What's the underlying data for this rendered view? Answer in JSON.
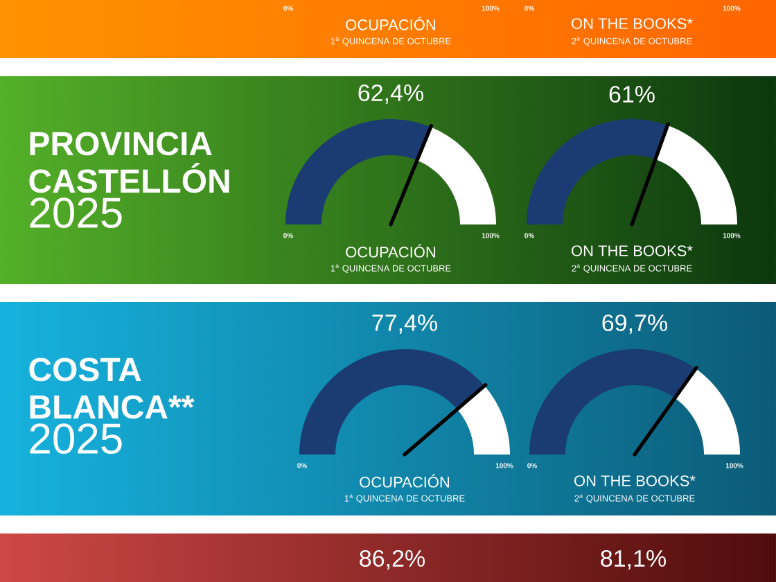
{
  "chart_data": [
    {
      "type": "other",
      "title": "OCUPACIÓN",
      "subtitle": "1$^{a}$ QUINCENA DE OCTUBRE",
      "annotations": [
        "0%",
        "100%"
      ]
    },
    {
      "type": "other",
      "title": "ON THE BOOKS*",
      "subtitle": "2$^{a}$ QUINCENA DE OCTUBRE",
      "annotations": [
        "0%",
        "100%"
      ]
    },
    {
      "type": "other",
      "title": "PROVINCIA CASTELLÓN",
      "subtitle": "2025"
    },
    {
      "type": "donut",
      "categories": [
        null,
        null
      ],
      "values": [
        62.4,
        37.6
      ],
      "colors": [
        "#1b3c73",
        "#ffffff"
      ],
      "value_labels": [
        "62,4%",
        null
      ],
      "title": "OCUPACIÓN",
      "subtitle": "1$^{a}$ QUINCENA DE OCTUBRE",
      "annotations": [
        "0%",
        "100%"
      ]
    },
    {
      "type": "donut",
      "categories": [
        null,
        null
      ],
      "values": [
        61,
        39
      ],
      "colors": [
        "#1b3c73",
        "#ffffff"
      ],
      "value_labels": [
        "61%",
        null
      ],
      "title": "ON THE BOOKS*",
      "subtitle": "2$^{a}$ QUINCENA DE OCTUBRE",
      "annotations": [
        "0%",
        "100%"
      ]
    },
    {
      "type": "other",
      "title": "COSTA BLANCA**",
      "subtitle": "2025"
    },
    {
      "type": "donut",
      "categories": [
        null,
        null
      ],
      "values": [
        77.4,
        22.6
      ],
      "colors": [
        "#1b3c73",
        "#ffffff"
      ],
      "value_labels": [
        "77,4%",
        null
      ],
      "title": "OCUPACIÓN",
      "subtitle": "1$^{a}$ QUINCENA DE OCTUBRE",
      "annotations": [
        "0%",
        "100%"
      ]
    },
    {
      "type": "donut",
      "categories": [
        null,
        null
      ],
      "values": [
        69.7,
        30.3
      ],
      "colors": [
        "#1b3c73",
        "#ffffff"
      ],
      "value_labels": [
        "69,7%",
        null
      ],
      "title": "ON THE BOOKS*",
      "subtitle": "2$^{a}$ QUINCENA DE OCTUBRE",
      "annotations": [
        "0%",
        "100%"
      ]
    },
    {
      "type": "other",
      "title": "86,2%"
    },
    {
      "type": "other",
      "title": "81,1%"
    }
  ]
}
